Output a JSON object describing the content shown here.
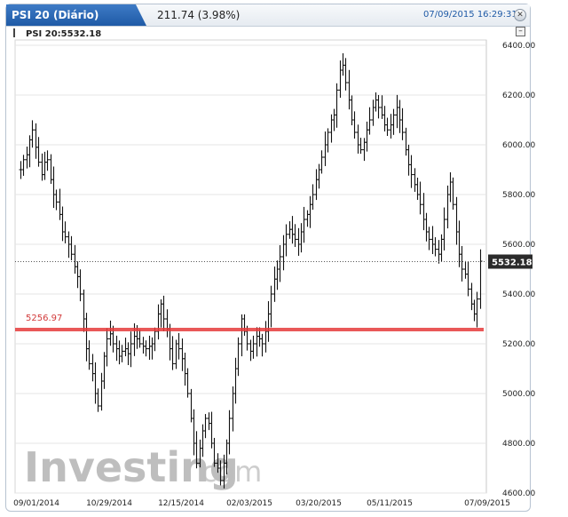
{
  "header": {
    "title": "PSI 20 (Diário)",
    "change": "211.74 (3.98%)",
    "timestamp": "07/09/2015 16:29:31"
  },
  "legend": {
    "label": "PSI 20:5532.18"
  },
  "watermark": {
    "bold": "Investing",
    "light": "com"
  },
  "colors": {
    "title_bg": "#2a66b3",
    "support_line": "#e63b3b",
    "last_price_bg": "#2b2b2b",
    "bars": "#111111"
  },
  "chart_data": {
    "type": "ohlc",
    "y_ticks": [
      "6400.00",
      "6200.00",
      "6000.00",
      "5800.00",
      "5600.00",
      "5400.00",
      "5200.00",
      "5000.00",
      "4800.00",
      "4600.00"
    ],
    "ylim": [
      4600,
      6400
    ],
    "x_ticks": [
      "09/01/2014",
      "10/29/2014",
      "12/15/2014",
      "02/03/2015",
      "03/20/2015",
      "05/11/2015",
      "07/09/2015"
    ],
    "last_price": {
      "value": 5532.18,
      "label": "5532.18"
    },
    "horizontal_line": {
      "value": 5256.97,
      "label": "5256.97"
    },
    "close_series": [
      5900,
      5940,
      5960,
      6020,
      6060,
      5990,
      5930,
      5880,
      5930,
      5940,
      5860,
      5800,
      5770,
      5720,
      5650,
      5630,
      5600,
      5560,
      5510,
      5470,
      5400,
      5300,
      5180,
      5120,
      5080,
      5000,
      4950,
      5050,
      5150,
      5220,
      5240,
      5200,
      5180,
      5150,
      5170,
      5180,
      5160,
      5200,
      5230,
      5220,
      5200,
      5190,
      5180,
      5190,
      5200,
      5250,
      5320,
      5360,
      5300,
      5260,
      5180,
      5120,
      5200,
      5180,
      5140,
      5080,
      5000,
      4900,
      4800,
      4720,
      4780,
      4850,
      4900,
      4880,
      4800,
      4720,
      4700,
      4650,
      4720,
      4800,
      4900,
      5000,
      5100,
      5200,
      5300,
      5250,
      5200,
      5170,
      5200,
      5230,
      5220,
      5200,
      5250,
      5320,
      5400,
      5460,
      5500,
      5550,
      5600,
      5640,
      5660,
      5640,
      5620,
      5600,
      5650,
      5700,
      5720,
      5760,
      5800,
      5860,
      5900,
      5950,
      6000,
      6050,
      6100,
      6120,
      6220,
      6300,
      6320,
      6250,
      6180,
      6100,
      6050,
      6000,
      5980,
      6010,
      6060,
      6100,
      6150,
      6180,
      6150,
      6120,
      6080,
      6060,
      6080,
      6120,
      6150,
      6100,
      6050,
      5980,
      5920,
      5880,
      5840,
      5800,
      5760,
      5700,
      5650,
      5620,
      5600,
      5580,
      5560,
      5620,
      5700,
      5800,
      5850,
      5760,
      5650,
      5560,
      5500,
      5480,
      5420,
      5360,
      5320,
      5380,
      5532
    ]
  }
}
